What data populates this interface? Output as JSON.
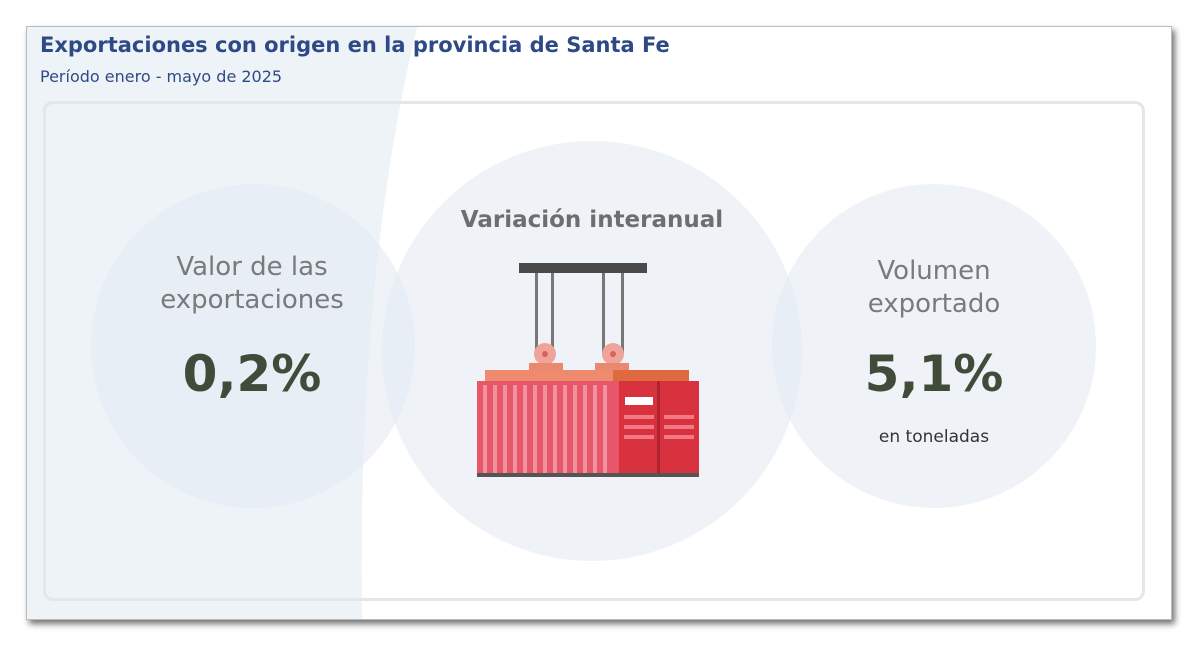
{
  "header": {
    "title": "Exportaciones con origen en la provincia de Santa Fe",
    "subtitle": "Período enero - mayo de 2025"
  },
  "center": {
    "title": "Variación interanual"
  },
  "left": {
    "label": "Valor de las exportaciones",
    "value": "0,2%"
  },
  "right": {
    "label": "Volumen exportado",
    "value": "5,1%",
    "note": "en toneladas"
  }
}
